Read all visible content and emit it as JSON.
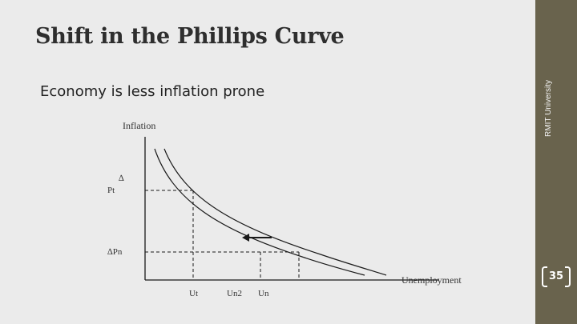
{
  "slide": {
    "title": "Shift in the Phillips Curve",
    "subtitle": "Economy is less inflation prone",
    "side_text": "RMIT University",
    "page_number": "35"
  },
  "diagram": {
    "y_axis_label": "Inflation",
    "x_axis_label": "Unemployment",
    "y_labels": {
      "delta": "∆",
      "pi": "Pt",
      "delta_pi": "∆Pn"
    },
    "x_labels": {
      "u1": "Ut",
      "un2": "Un2",
      "un": "Un"
    },
    "colors": {
      "background": "#ebebeb",
      "sidebar": "#69634d",
      "lines": "#1a1a1a"
    }
  }
}
